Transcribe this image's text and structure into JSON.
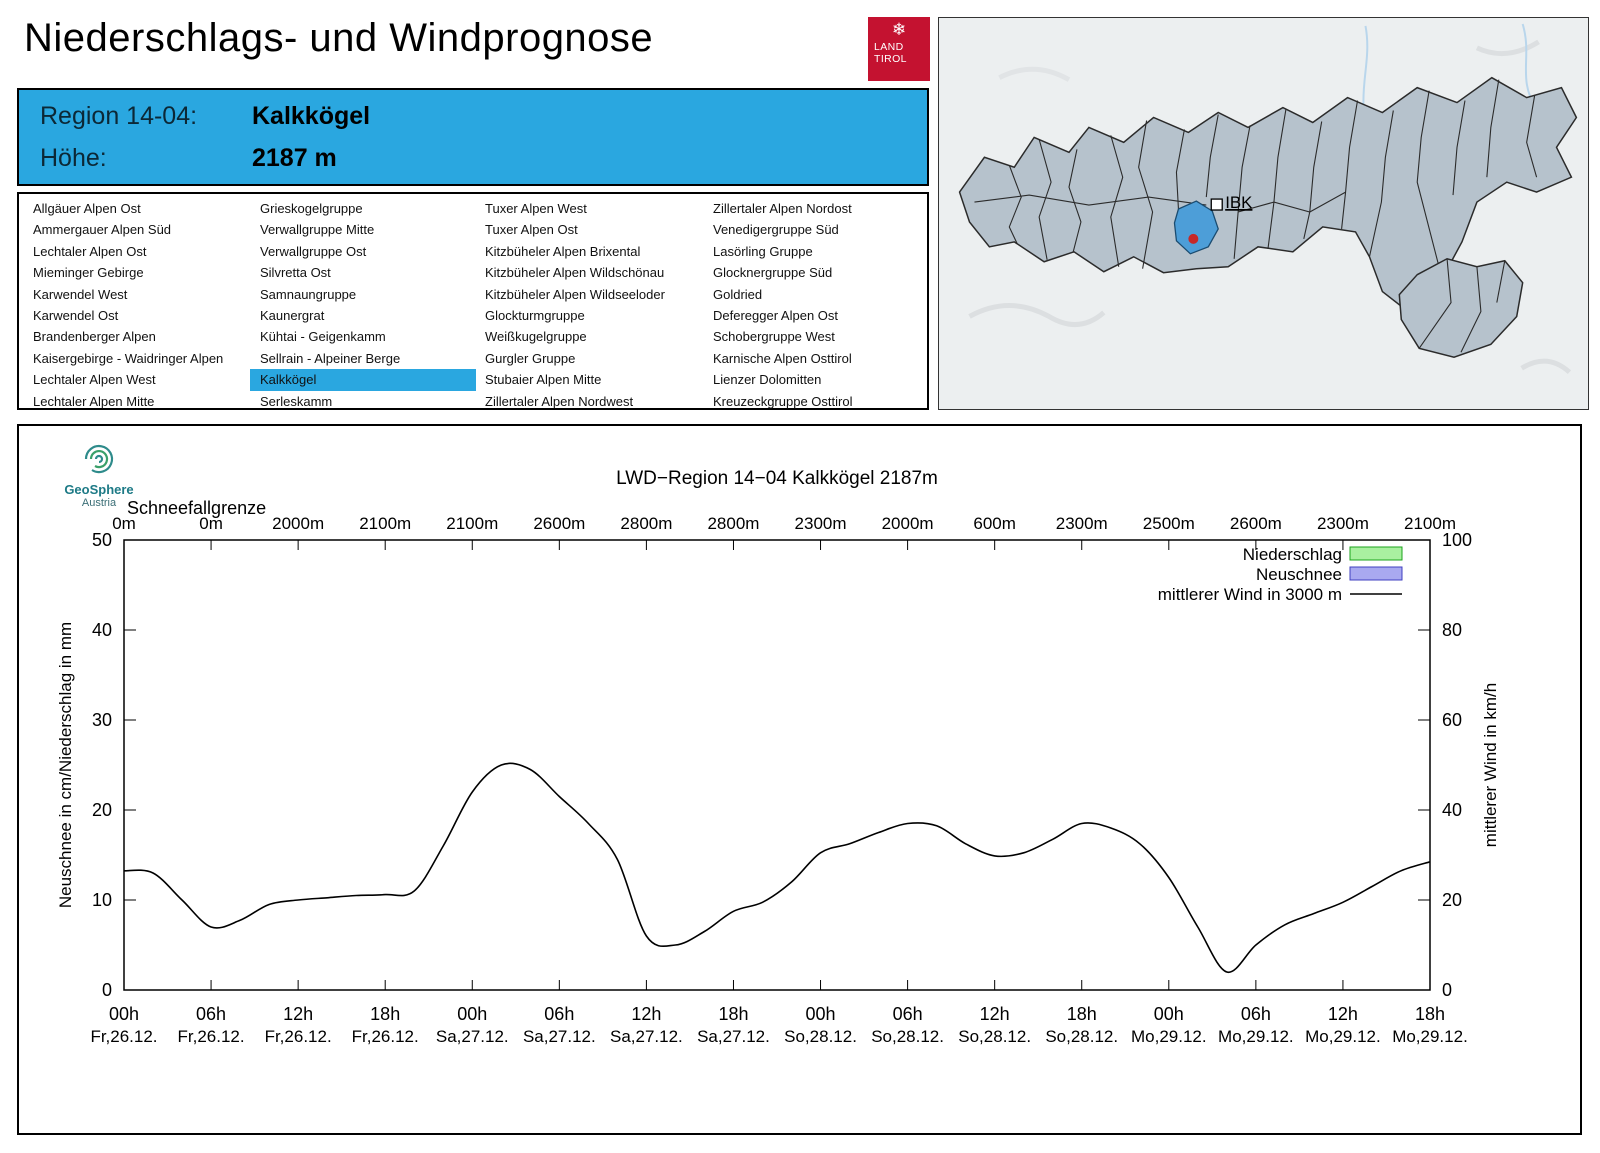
{
  "page": {
    "title": "Niederschlags- und Windprognose"
  },
  "land_logo": {
    "snowflake": "❄",
    "line1": "LAND",
    "line2": "TIROL"
  },
  "map": {
    "ibk_label": "IBK"
  },
  "region_header": {
    "region_label": "Region 14-04:",
    "region_value": "Kalkkögel",
    "altitude_label": "Höhe:",
    "altitude_value": "2187 m"
  },
  "region_list": {
    "selected": "Kalkkögel",
    "columns": [
      [
        "Allgäuer Alpen Ost",
        "Ammergauer Alpen Süd",
        "Lechtaler Alpen Ost",
        "Mieminger Gebirge",
        "Karwendel West",
        "Karwendel Ost",
        "Brandenberger Alpen",
        "Kaisergebirge - Waidringer Alpen",
        "Lechtaler Alpen West",
        "Lechtaler Alpen Mitte"
      ],
      [
        "Grieskogelgruppe",
        "Verwallgruppe Mitte",
        "Verwallgruppe Ost",
        "Silvretta Ost",
        "Samnaungruppe",
        "Kaunergrat",
        "Kühtai - Geigenkamm",
        "Sellrain - Alpeiner Berge",
        "Kalkkögel",
        "Serleskamm"
      ],
      [
        "Tuxer Alpen West",
        "Tuxer Alpen Ost",
        "Kitzbüheler Alpen Brixental",
        "Kitzbüheler Alpen Wildschönau",
        "Kitzbüheler Alpen Wildseeloder",
        "Glockturmgruppe",
        "Weißkugelgruppe",
        "Gurgler Gruppe",
        "Stubaier Alpen Mitte",
        "Zillertaler Alpen Nordwest"
      ],
      [
        "Zillertaler Alpen Nordost",
        "Venedigergruppe Süd",
        "Lasörling Gruppe",
        "Glocknergruppe Süd",
        "Goldried",
        "Deferegger Alpen Ost",
        "Schobergruppe West",
        "Karnische Alpen Osttirol",
        "Lienzer Dolomitten",
        "Kreuzeckgruppe Osttirol"
      ]
    ]
  },
  "geosphere": {
    "name": "GeoSphere",
    "country": "Austria"
  },
  "colors": {
    "accent_blue": "#2aa7e0",
    "map_selected_blue": "#4d9ed8",
    "land_logo_red": "#c41230"
  },
  "chart_data": {
    "type": "line",
    "title": "LWD−Region 14−04 Kalkkögel 2187m",
    "snowline_label": "Schneefallgrenze",
    "snowline_values": [
      "0m",
      "0m",
      "2000m",
      "2100m",
      "2100m",
      "2600m",
      "2800m",
      "2800m",
      "2300m",
      "2000m",
      "600m",
      "2300m",
      "2500m",
      "2600m",
      "2300m",
      "2100m"
    ],
    "ylabel_left": "Neuschnee in cm/Niederschlag in mm",
    "ylabel_right": "mittlerer Wind in km/h",
    "ylim_left": [
      0,
      50
    ],
    "ylim_right": [
      0,
      100
    ],
    "yticks_left": [
      0,
      10,
      20,
      30,
      40,
      50
    ],
    "yticks_right": [
      0,
      20,
      40,
      60,
      80,
      100
    ],
    "xlim_hours": [
      0,
      90
    ],
    "x_ticks": [
      {
        "hour": "00h",
        "day": "Fr,26.12."
      },
      {
        "hour": "06h",
        "day": "Fr,26.12."
      },
      {
        "hour": "12h",
        "day": "Fr,26.12."
      },
      {
        "hour": "18h",
        "day": "Fr,26.12."
      },
      {
        "hour": "00h",
        "day": "Sa,27.12."
      },
      {
        "hour": "06h",
        "day": "Sa,27.12."
      },
      {
        "hour": "12h",
        "day": "Sa,27.12."
      },
      {
        "hour": "18h",
        "day": "Sa,27.12."
      },
      {
        "hour": "00h",
        "day": "So,28.12."
      },
      {
        "hour": "06h",
        "day": "So,28.12."
      },
      {
        "hour": "12h",
        "day": "So,28.12."
      },
      {
        "hour": "18h",
        "day": "So,28.12."
      },
      {
        "hour": "00h",
        "day": "Mo,29.12."
      },
      {
        "hour": "06h",
        "day": "Mo,29.12."
      },
      {
        "hour": "12h",
        "day": "Mo,29.12."
      },
      {
        "hour": "18h",
        "day": "Mo,29.12."
      }
    ],
    "legend": [
      {
        "label": "Niederschlag",
        "type": "box",
        "fill": "#a9f0a0",
        "stroke": "#1ca31c"
      },
      {
        "label": "Neuschnee",
        "type": "box",
        "fill": "#a9a9f0",
        "stroke": "#4040c0"
      },
      {
        "label": "mittlerer Wind in 3000 m",
        "type": "line",
        "stroke": "#000000"
      }
    ],
    "series": [
      {
        "name": "Niederschlag",
        "unit": "mm",
        "axis": "left",
        "values": []
      },
      {
        "name": "Neuschnee",
        "unit": "cm",
        "axis": "left",
        "values": []
      },
      {
        "name": "mittlerer Wind in 3000 m",
        "unit": "km/h",
        "axis": "right",
        "x_hours": [
          0,
          2,
          4,
          6,
          8,
          10,
          12,
          14,
          16,
          18,
          20,
          22,
          24,
          26,
          28,
          30,
          32,
          34,
          36,
          38,
          40,
          42,
          44,
          46,
          48,
          50,
          52,
          54,
          56,
          58,
          60,
          62,
          64,
          66,
          68,
          70,
          72,
          74,
          76,
          78,
          80,
          82,
          84,
          86,
          88,
          90
        ],
        "values": [
          26.5,
          26,
          20,
          14,
          15.5,
          19,
          20,
          20.5,
          21,
          21.2,
          22,
          32,
          44,
          50,
          49,
          43,
          37,
          29,
          12,
          10,
          13,
          17.5,
          19.5,
          24,
          30.5,
          32.5,
          35,
          37,
          36.5,
          32.5,
          29.8,
          30.5,
          33.5,
          37,
          36,
          32.5,
          25,
          14,
          4,
          10,
          14.5,
          17,
          19.5,
          23,
          26.5,
          28.5
        ]
      }
    ]
  }
}
